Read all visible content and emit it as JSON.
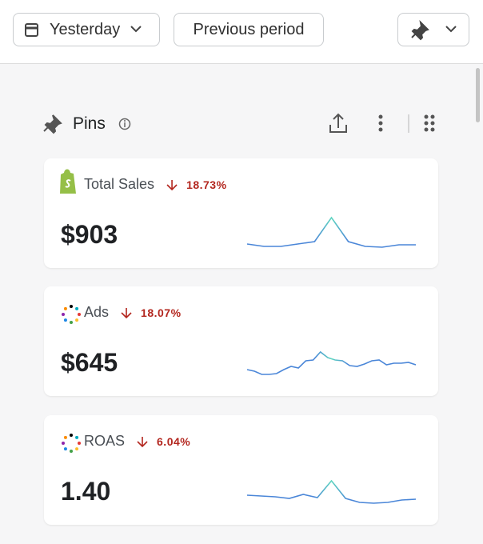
{
  "toolbar": {
    "date_button": "Yesterday",
    "compare_button": "Previous period"
  },
  "section": {
    "title": "Pins"
  },
  "cards": [
    {
      "label": "Total Sales",
      "change": "18.73%",
      "value": "$903",
      "icon": "shopify",
      "sparkline": [
        15,
        12,
        12,
        15,
        18,
        48,
        18,
        12,
        11,
        14,
        14
      ]
    },
    {
      "label": "Ads",
      "change": "18.07%",
      "value": "$645",
      "icon": "dots",
      "sparkline": [
        18,
        16,
        12,
        12,
        13,
        18,
        22,
        20,
        29,
        30,
        40,
        33,
        30,
        29,
        23,
        22,
        25,
        29,
        30,
        24,
        26,
        26,
        27,
        24
      ]
    },
    {
      "label": "ROAS",
      "change": "6.04%",
      "value": "1.40",
      "icon": "dots",
      "sparkline": [
        22,
        21,
        20,
        18,
        23,
        19,
        40,
        18,
        13,
        12,
        13,
        16,
        17
      ]
    }
  ]
}
